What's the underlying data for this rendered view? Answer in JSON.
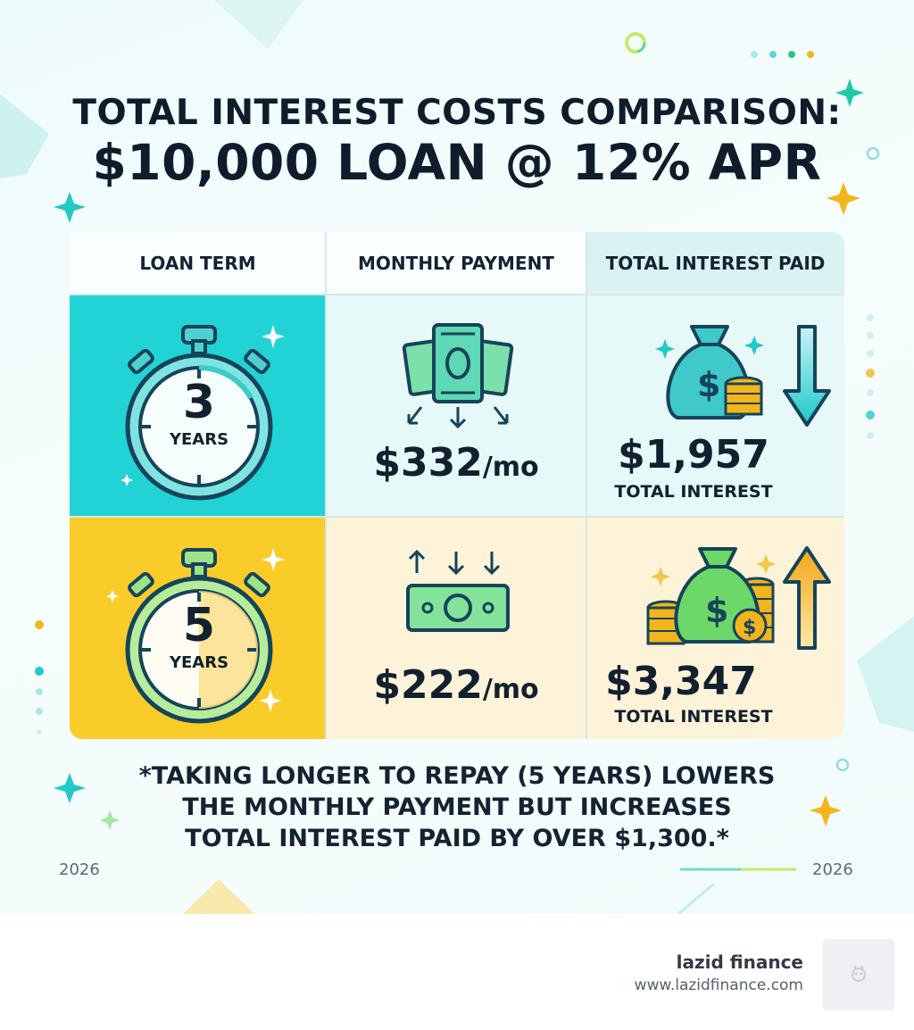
{
  "title": {
    "line1": "TOTAL INTEREST COSTS COMPARISON:",
    "line2": "$10,000 LOAN @ 12% APR"
  },
  "table": {
    "headers": [
      "LOAN TERM",
      "MONTHLY PAYMENT",
      "TOTAL INTEREST PAID"
    ],
    "rows": [
      {
        "term_number": "3",
        "term_unit": "YEARS",
        "payment_amount": "$332",
        "payment_unit": "/mo",
        "interest_amount": "$1,957",
        "interest_label": "TOTAL INTEREST",
        "row_color": "#22d3d6",
        "trend": "down"
      },
      {
        "term_number": "5",
        "term_unit": "YEARS",
        "payment_amount": "$222",
        "payment_unit": "/mo",
        "interest_amount": "$3,347",
        "interest_label": "TOTAL INTEREST",
        "row_color": "#f9cc2a",
        "trend": "up"
      }
    ]
  },
  "note": {
    "line1": "*TAKING LONGER TO REPAY (5 YEARS) LOWERS",
    "line2": "THE MONTHLY PAYMENT BUT INCREASES",
    "line3": "TOTAL INTEREST PAID BY OVER $1,300.*"
  },
  "year_left": "2026",
  "year_right": "2026",
  "brand": {
    "name": "lazid finance",
    "url": "www.lazidfinance.com"
  },
  "icons": [
    "stopwatch-icon",
    "cash-icon",
    "money-bag-icon",
    "coin-stack-icon",
    "arrow-down-icon",
    "arrow-up-icon",
    "sparkle-icon"
  ],
  "colors": {
    "teal": "#22d3d6",
    "yellow": "#f9cc2a",
    "money_green": "#5fd38d",
    "gold": "#f3b51b",
    "text": "#0f1c2c"
  }
}
